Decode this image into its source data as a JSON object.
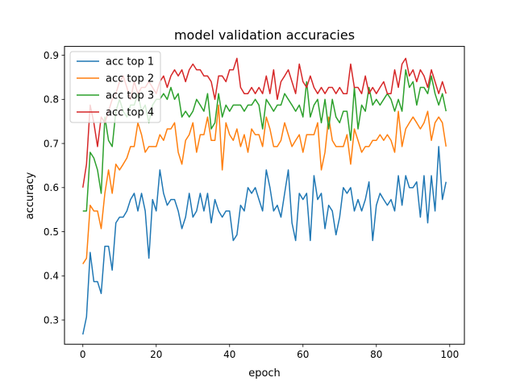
{
  "chart_data": {
    "type": "line",
    "title": "model validation accuracies",
    "xlabel": "epoch",
    "ylabel": "accuracy",
    "xlim": [
      -5,
      104
    ],
    "ylim": [
      0.245,
      0.92
    ],
    "xticks": [
      0,
      20,
      40,
      60,
      80,
      100
    ],
    "yticks": [
      0.3,
      0.4,
      0.5,
      0.6,
      0.7,
      0.8,
      0.9
    ],
    "grid": false,
    "legend_position": "upper-left",
    "x": [
      0,
      1,
      2,
      3,
      4,
      5,
      6,
      7,
      8,
      9,
      10,
      11,
      12,
      13,
      14,
      15,
      16,
      17,
      18,
      19,
      20,
      21,
      22,
      23,
      24,
      25,
      26,
      27,
      28,
      29,
      30,
      31,
      32,
      33,
      34,
      35,
      36,
      37,
      38,
      39,
      40,
      41,
      42,
      43,
      44,
      45,
      46,
      47,
      48,
      49,
      50,
      51,
      52,
      53,
      54,
      55,
      56,
      57,
      58,
      59,
      60,
      61,
      62,
      63,
      64,
      65,
      66,
      67,
      68,
      69,
      70,
      71,
      72,
      73,
      74,
      75,
      76,
      77,
      78,
      79,
      80,
      81,
      82,
      83,
      84,
      85,
      86,
      87,
      88,
      89,
      90,
      91,
      92,
      93,
      94,
      95,
      96,
      97,
      98,
      99
    ],
    "series": [
      {
        "name": "acc top 1",
        "color": "#1f77b4",
        "values": [
          0.267,
          0.307,
          0.453,
          0.387,
          0.387,
          0.36,
          0.467,
          0.467,
          0.413,
          0.52,
          0.533,
          0.533,
          0.547,
          0.573,
          0.587,
          0.547,
          0.587,
          0.547,
          0.44,
          0.573,
          0.547,
          0.64,
          0.587,
          0.56,
          0.573,
          0.573,
          0.547,
          0.507,
          0.533,
          0.587,
          0.533,
          0.547,
          0.587,
          0.547,
          0.587,
          0.52,
          0.573,
          0.547,
          0.533,
          0.547,
          0.547,
          0.48,
          0.493,
          0.56,
          0.547,
          0.6,
          0.587,
          0.6,
          0.573,
          0.547,
          0.64,
          0.6,
          0.547,
          0.56,
          0.533,
          0.587,
          0.64,
          0.52,
          0.48,
          0.587,
          0.573,
          0.587,
          0.48,
          0.627,
          0.573,
          0.587,
          0.507,
          0.56,
          0.547,
          0.493,
          0.533,
          0.6,
          0.587,
          0.6,
          0.547,
          0.573,
          0.547,
          0.573,
          0.613,
          0.48,
          0.56,
          0.587,
          0.573,
          0.56,
          0.573,
          0.547,
          0.627,
          0.56,
          0.627,
          0.6,
          0.6,
          0.613,
          0.533,
          0.627,
          0.52,
          0.627,
          0.547,
          0.693,
          0.573,
          0.613
        ]
      },
      {
        "name": "acc top 2",
        "color": "#ff7f0e",
        "values": [
          0.427,
          0.44,
          0.56,
          0.547,
          0.547,
          0.507,
          0.587,
          0.64,
          0.587,
          0.653,
          0.64,
          0.653,
          0.667,
          0.693,
          0.693,
          0.747,
          0.72,
          0.68,
          0.693,
          0.693,
          0.693,
          0.72,
          0.707,
          0.733,
          0.733,
          0.747,
          0.68,
          0.653,
          0.707,
          0.72,
          0.747,
          0.68,
          0.72,
          0.72,
          0.76,
          0.707,
          0.707,
          0.787,
          0.64,
          0.747,
          0.72,
          0.707,
          0.733,
          0.693,
          0.72,
          0.68,
          0.733,
          0.72,
          0.72,
          0.693,
          0.76,
          0.733,
          0.693,
          0.693,
          0.707,
          0.747,
          0.72,
          0.693,
          0.707,
          0.72,
          0.68,
          0.72,
          0.72,
          0.72,
          0.747,
          0.64,
          0.68,
          0.76,
          0.707,
          0.693,
          0.693,
          0.693,
          0.72,
          0.653,
          0.733,
          0.707,
          0.68,
          0.693,
          0.693,
          0.707,
          0.707,
          0.72,
          0.707,
          0.72,
          0.707,
          0.68,
          0.773,
          0.693,
          0.733,
          0.747,
          0.76,
          0.747,
          0.733,
          0.747,
          0.773,
          0.707,
          0.747,
          0.76,
          0.747,
          0.693
        ]
      },
      {
        "name": "acc top 3",
        "color": "#2ca02c",
        "values": [
          0.547,
          0.547,
          0.68,
          0.667,
          0.64,
          0.587,
          0.76,
          0.707,
          0.693,
          0.773,
          0.8,
          0.773,
          0.76,
          0.787,
          0.787,
          0.813,
          0.773,
          0.787,
          0.747,
          0.787,
          0.8,
          0.8,
          0.813,
          0.8,
          0.827,
          0.8,
          0.813,
          0.76,
          0.773,
          0.76,
          0.773,
          0.8,
          0.787,
          0.773,
          0.813,
          0.733,
          0.747,
          0.813,
          0.76,
          0.787,
          0.773,
          0.787,
          0.787,
          0.787,
          0.773,
          0.787,
          0.787,
          0.8,
          0.787,
          0.733,
          0.8,
          0.787,
          0.773,
          0.787,
          0.787,
          0.813,
          0.8,
          0.787,
          0.773,
          0.787,
          0.76,
          0.84,
          0.76,
          0.787,
          0.8,
          0.747,
          0.8,
          0.733,
          0.8,
          0.76,
          0.747,
          0.773,
          0.773,
          0.707,
          0.827,
          0.733,
          0.787,
          0.773,
          0.827,
          0.787,
          0.8,
          0.787,
          0.8,
          0.813,
          0.8,
          0.773,
          0.8,
          0.773,
          0.867,
          0.827,
          0.84,
          0.787,
          0.827,
          0.827,
          0.813,
          0.853,
          0.813,
          0.787,
          0.813,
          0.773
        ]
      },
      {
        "name": "acc top 4",
        "color": "#d62728",
        "values": [
          0.6,
          0.653,
          0.787,
          0.747,
          0.693,
          0.76,
          0.747,
          0.773,
          0.8,
          0.813,
          0.84,
          0.853,
          0.827,
          0.8,
          0.84,
          0.813,
          0.827,
          0.827,
          0.84,
          0.827,
          0.813,
          0.84,
          0.853,
          0.827,
          0.853,
          0.867,
          0.853,
          0.867,
          0.84,
          0.867,
          0.88,
          0.867,
          0.867,
          0.853,
          0.853,
          0.84,
          0.8,
          0.853,
          0.853,
          0.84,
          0.867,
          0.867,
          0.893,
          0.827,
          0.813,
          0.813,
          0.827,
          0.813,
          0.827,
          0.813,
          0.853,
          0.813,
          0.867,
          0.8,
          0.84,
          0.853,
          0.867,
          0.84,
          0.813,
          0.88,
          0.84,
          0.827,
          0.853,
          0.827,
          0.813,
          0.827,
          0.813,
          0.827,
          0.827,
          0.813,
          0.827,
          0.813,
          0.813,
          0.88,
          0.827,
          0.827,
          0.813,
          0.853,
          0.813,
          0.827,
          0.813,
          0.827,
          0.84,
          0.813,
          0.813,
          0.867,
          0.827,
          0.88,
          0.893,
          0.853,
          0.867,
          0.84,
          0.867,
          0.853,
          0.827,
          0.867,
          0.84,
          0.813,
          0.84,
          0.813
        ]
      }
    ]
  }
}
